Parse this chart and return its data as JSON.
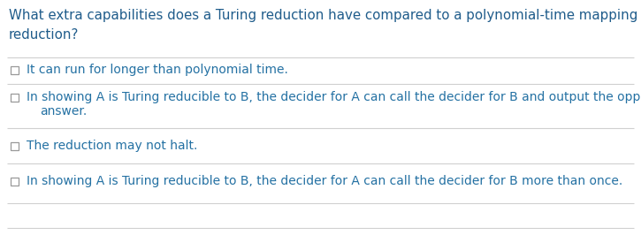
{
  "title_line1": "What extra capabilities does a Turing reduction have compared to a polynomial-time mapping",
  "title_line2": "reduction?",
  "title_color": "#1f5c8b",
  "title_fontsize": 10.8,
  "options": [
    "It can run for longer than polynomial time.",
    "In showing A is Turing reducible to B, the decider for A can call the decider for B and output the opposite\nanswer.",
    "The reduction may not halt.",
    "In showing A is Turing reducible to B, the decider for A can call the decider for B more than once."
  ],
  "option_color": "#2471a3",
  "option_fontsize": 10.0,
  "background_color": "#ffffff",
  "separator_color": "#d0d0d0",
  "checkbox_color": "#999999",
  "fig_width": 7.25,
  "fig_height": 2.66,
  "dpi": 100
}
